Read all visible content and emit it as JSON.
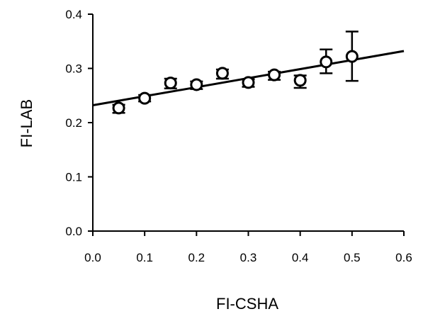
{
  "chart_data": {
    "type": "scatter",
    "title": "",
    "xlabel": "FI-CSHA",
    "ylabel": "FI-LAB",
    "xlim": [
      0.0,
      0.6
    ],
    "ylim": [
      0.0,
      0.4
    ],
    "x_ticks": [
      "0.0",
      "0.1",
      "0.2",
      "0.3",
      "0.4",
      "0.5",
      "0.6"
    ],
    "y_ticks": [
      "0.0",
      "0.1",
      "0.2",
      "0.3",
      "0.4"
    ],
    "grid": false,
    "legend": "none",
    "series": [
      {
        "x": [
          0.05,
          0.1,
          0.15,
          0.2,
          0.25,
          0.3,
          0.35,
          0.4,
          0.45,
          0.5
        ],
        "y": [
          0.227,
          0.245,
          0.273,
          0.27,
          0.291,
          0.274,
          0.288,
          0.278,
          0.312,
          0.322
        ],
        "err_low": [
          0.009,
          0.006,
          0.01,
          0.008,
          0.01,
          0.008,
          0.009,
          0.014,
          0.021,
          0.045
        ],
        "err_high": [
          0.006,
          0.006,
          0.008,
          0.006,
          0.007,
          0.006,
          0.006,
          0.009,
          0.023,
          0.046
        ]
      }
    ],
    "fit_line": {
      "x": [
        0.0,
        0.6
      ],
      "y": [
        0.232,
        0.332
      ]
    }
  }
}
